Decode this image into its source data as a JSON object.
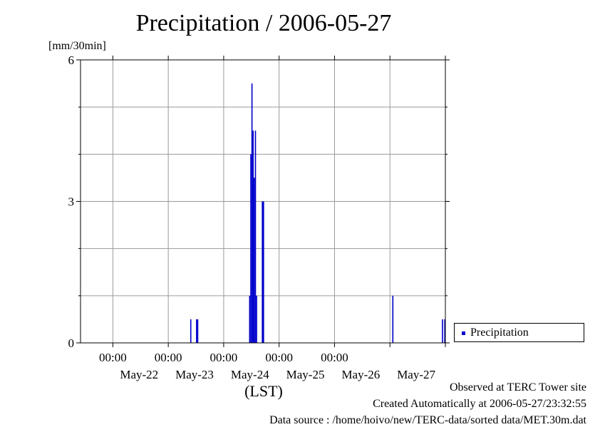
{
  "chart_data": {
    "type": "bar",
    "title": "Precipitation / 2006-05-27",
    "ylabel": "[mm/30min]",
    "xlabel": "(LST)",
    "ylim": [
      0,
      6
    ],
    "y_ticks": [
      0,
      3,
      6
    ],
    "x_range": [
      "2006-05-21T10:00",
      "2006-05-28T00:00"
    ],
    "x_tick_labels": [
      "00:00",
      "00:00",
      "00:00",
      "00:00",
      "00:00"
    ],
    "date_labels": [
      "May-22",
      "May-23",
      "May-24",
      "May-25",
      "May-26",
      "May-27"
    ],
    "grid": true,
    "legend": "right",
    "series": [
      {
        "name": "Precipitation",
        "color": "#0000cc",
        "points": [
          {
            "x": "2006-05-23T09:30",
            "y": 0.5
          },
          {
            "x": "2006-05-23T12:00",
            "y": 0.5
          },
          {
            "x": "2006-05-23T12:30",
            "y": 0.5
          },
          {
            "x": "2006-05-24T11:00",
            "y": 1.0
          },
          {
            "x": "2006-05-24T11:30",
            "y": 4.0
          },
          {
            "x": "2006-05-24T12:00",
            "y": 5.5
          },
          {
            "x": "2006-05-24T12:30",
            "y": 4.5
          },
          {
            "x": "2006-05-24T13:00",
            "y": 3.5
          },
          {
            "x": "2006-05-24T13:30",
            "y": 4.5
          },
          {
            "x": "2006-05-24T14:00",
            "y": 1.0
          },
          {
            "x": "2006-05-24T16:30",
            "y": 3.0
          },
          {
            "x": "2006-05-24T17:00",
            "y": 3.0
          },
          {
            "x": "2006-05-27T01:00",
            "y": 1.0
          },
          {
            "x": "2006-05-27T22:30",
            "y": 0.5
          },
          {
            "x": "2006-05-27T23:30",
            "y": 0.5
          }
        ]
      }
    ]
  },
  "footer": {
    "observed": "Observed at TERC Tower site",
    "created": "Created Automatically at 2006-05-27/23:32:55",
    "source": "Data source : /home/hoivo/new/TERC-data/sorted  data/MET.30m.dat"
  }
}
